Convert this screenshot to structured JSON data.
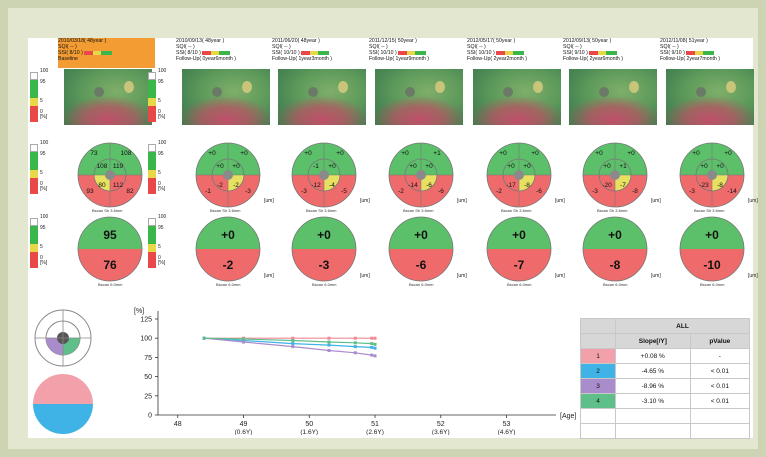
{
  "visits": [
    {
      "date": "2010/03/18",
      "age": "48year",
      "sq": "SQI( -- )",
      "ssi": "SSI( 8/10 )",
      "followup": "Baseline",
      "fundus_labels": {
        "legend": [
          "100",
          "95",
          "5",
          "0",
          "[%]"
        ]
      },
      "sectors": {
        "top": "73",
        "topright": "108",
        "inner_top_left": "108",
        "inner_top_right": "119",
        "inner_bottom_left": "80",
        "inner_bottom_right": "112",
        "bottom_left": "93",
        "bottom_right": "82"
      },
      "half_top": "95",
      "half_bottom": "76"
    },
    {
      "date": "2010/09/13",
      "age": "48year",
      "sq": "SQI( -- )",
      "ssi": "SSI( 8/10 )",
      "followup": "Follow-Up( 0year6month )",
      "sectors": {
        "top": "+0",
        "topright": "+0",
        "inner_top_left": "+0",
        "inner_top_right": "+0",
        "inner_bottom_left": "-2",
        "inner_bottom_right": "-2",
        "bottom_left": "-1",
        "bottom_right": "-3"
      },
      "half_top": "+0",
      "half_bottom": "-2"
    },
    {
      "date": "2011/06/20",
      "age": "48year",
      "sq": "SQI( -- )",
      "ssi": "SSI( 10/10 )",
      "followup": "Follow-Up( 1year3month )",
      "sectors": {
        "top": "+0",
        "topright": "+0",
        "inner_top_left": "-1",
        "inner_top_right": "+0",
        "inner_bottom_left": "-12",
        "inner_bottom_right": "-4",
        "bottom_left": "-3",
        "bottom_right": "-5"
      },
      "half_top": "+0",
      "half_bottom": "-3"
    },
    {
      "date": "2011/12/15",
      "age": "50year",
      "sq": "SQI( -- )",
      "ssi": "SSI( 10/10 )",
      "followup": "Follow-Up( 1year9month )",
      "sectors": {
        "top": "+0",
        "topright": "+1",
        "inner_top_left": "+0",
        "inner_top_right": "+0",
        "inner_bottom_left": "-14",
        "inner_bottom_right": "-6",
        "bottom_left": "-2",
        "bottom_right": "-6"
      },
      "half_top": "+0",
      "half_bottom": "-6"
    },
    {
      "date": "2012/05/17",
      "age": "50year",
      "sq": "SQI( -- )",
      "ssi": "SSI( 10/10 )",
      "followup": "Follow-Up( 2year2month )",
      "sectors": {
        "top": "+0",
        "topright": "+0",
        "inner_top_left": "+0",
        "inner_top_right": "+0",
        "inner_bottom_left": "-17",
        "inner_bottom_right": "-8",
        "bottom_left": "-2",
        "bottom_right": "-6"
      },
      "half_top": "+0",
      "half_bottom": "-7"
    },
    {
      "date": "2012/09/13",
      "age": "50year",
      "sq": "SQI( -- )",
      "ssi": "SSI( 9/10 )",
      "followup": "Follow-Up( 2year6month )",
      "sectors": {
        "top": "+0",
        "topright": "+0",
        "inner_top_left": "+0",
        "inner_top_right": "+1",
        "inner_bottom_left": "-20",
        "inner_bottom_right": "-7",
        "bottom_left": "-3",
        "bottom_right": "-8"
      },
      "half_top": "+0",
      "half_bottom": "-8"
    },
    {
      "date": "2012/11/08",
      "age": "51year",
      "sq": "SQI( -- )",
      "ssi": "SSI( 9/10 )",
      "followup": "Follow-Up( 2year7month )",
      "sectors": {
        "top": "+0",
        "topright": "+0",
        "inner_top_left": "+0",
        "inner_top_right": "+0",
        "inner_bottom_left": "-23",
        "inner_bottom_right": "-8",
        "bottom_left": "-3",
        "bottom_right": "-14"
      },
      "half_top": "+0",
      "half_bottom": "-10"
    }
  ],
  "legend": {
    "labels": [
      "100",
      "95",
      "5",
      "0",
      "[%]"
    ],
    "unit": "[um]"
  },
  "circle_caption": "Bscan Sh 3.6mm",
  "half_caption": "Bscan 6.0mm",
  "chart_data": {
    "type": "line",
    "ylabel": "[%]",
    "xlabel": "[Age]",
    "ylim": [
      0,
      125
    ],
    "yticks": [
      "0",
      "25",
      "50",
      "75",
      "100",
      "125"
    ],
    "xlim": [
      47.7,
      53.6
    ],
    "xticks": [
      {
        "value": 48,
        "label": "48",
        "sub": ""
      },
      {
        "value": 49,
        "label": "49",
        "sub": "(0.6Y)"
      },
      {
        "value": 50,
        "label": "50",
        "sub": "(1.6Y)"
      },
      {
        "value": 51,
        "label": "51",
        "sub": "(2.6Y)"
      },
      {
        "value": 52,
        "label": "52",
        "sub": "(3.6Y)"
      },
      {
        "value": 53,
        "label": "53",
        "sub": "(4.6Y)"
      }
    ],
    "x": [
      48.4,
      49.0,
      49.75,
      50.3,
      50.7,
      50.95,
      51.0
    ],
    "series": [
      {
        "name": "1",
        "color": "#ef8a95",
        "values": [
          100,
          100,
          100,
          100,
          100,
          100,
          100
        ]
      },
      {
        "name": "2",
        "color": "#3fb3e6",
        "values": [
          100,
          97,
          93,
          91,
          89,
          88,
          87
        ]
      },
      {
        "name": "3",
        "color": "#a98ccc",
        "values": [
          100,
          95,
          89,
          84,
          81,
          78,
          77
        ]
      },
      {
        "name": "4",
        "color": "#5fbf8a",
        "values": [
          100,
          99,
          97,
          95,
          94,
          93,
          92
        ]
      }
    ]
  },
  "table": {
    "header_all": "ALL",
    "col_slope": "Slope[/Y]",
    "col_p": "pValue",
    "rows": [
      {
        "id": "1",
        "color": "#f2a1ab",
        "slope": "+0.08 %",
        "p": "-"
      },
      {
        "id": "2",
        "color": "#3fb3e6",
        "slope": "-4.65 %",
        "p": "< 0.01"
      },
      {
        "id": "3",
        "color": "#a98ccc",
        "slope": "-8.96 %",
        "p": "< 0.01"
      },
      {
        "id": "4",
        "color": "#5fbf8a",
        "slope": "-3.10 %",
        "p": "< 0.01"
      }
    ]
  }
}
